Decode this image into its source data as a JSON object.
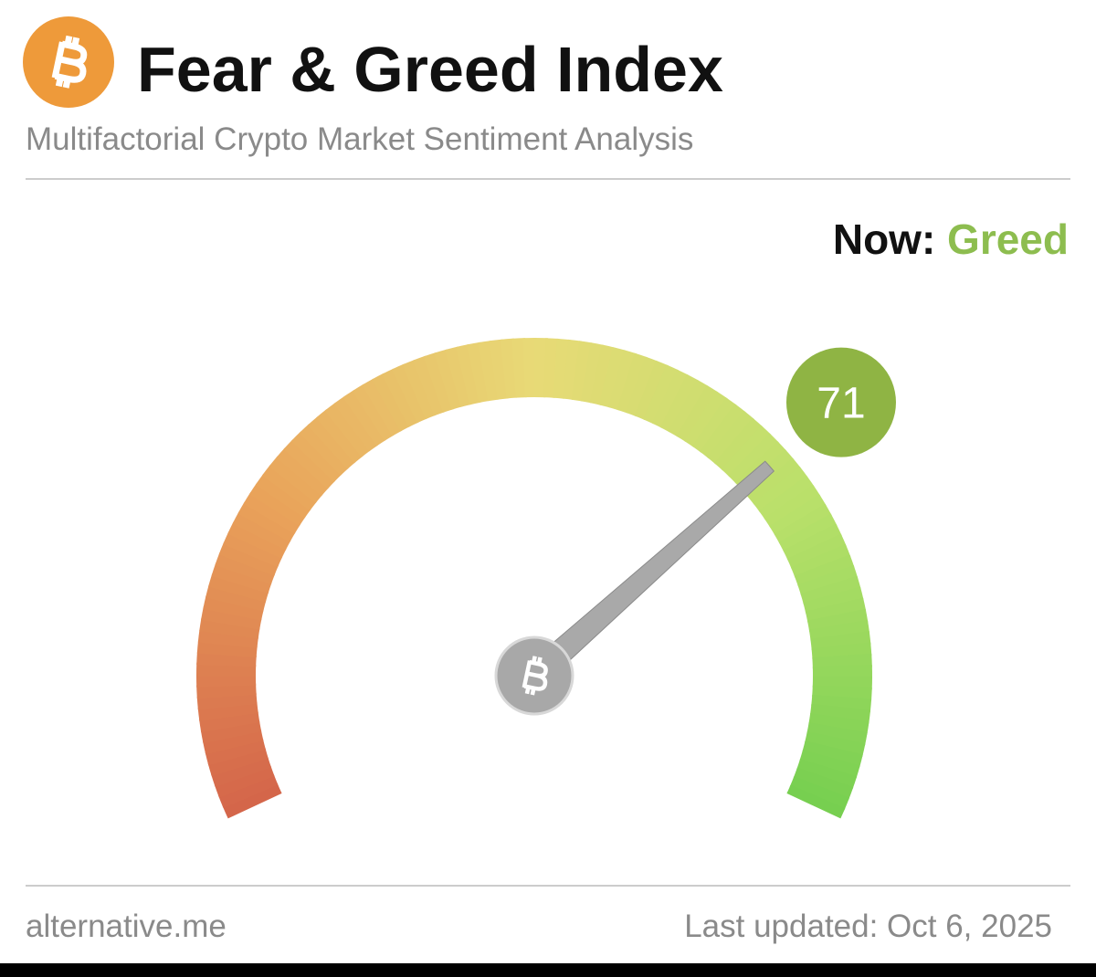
{
  "header": {
    "title": "Fear & Greed Index",
    "subtitle": "Multifactorial Crypto Market Sentiment Analysis"
  },
  "chart_data": {
    "type": "gauge",
    "now_label": "Now:",
    "classification": "Greed",
    "classification_color": "#8dbd4f",
    "value": 71,
    "value_color": "#8fb444",
    "ylim": [
      0,
      100
    ],
    "colors": [
      "#d4654a",
      "#e9a25a",
      "#e8da76",
      "#b9e06a",
      "#76cf50"
    ]
  },
  "footer": {
    "source": "alternative.me",
    "updated": "Last updated: Oct 6, 2025"
  }
}
